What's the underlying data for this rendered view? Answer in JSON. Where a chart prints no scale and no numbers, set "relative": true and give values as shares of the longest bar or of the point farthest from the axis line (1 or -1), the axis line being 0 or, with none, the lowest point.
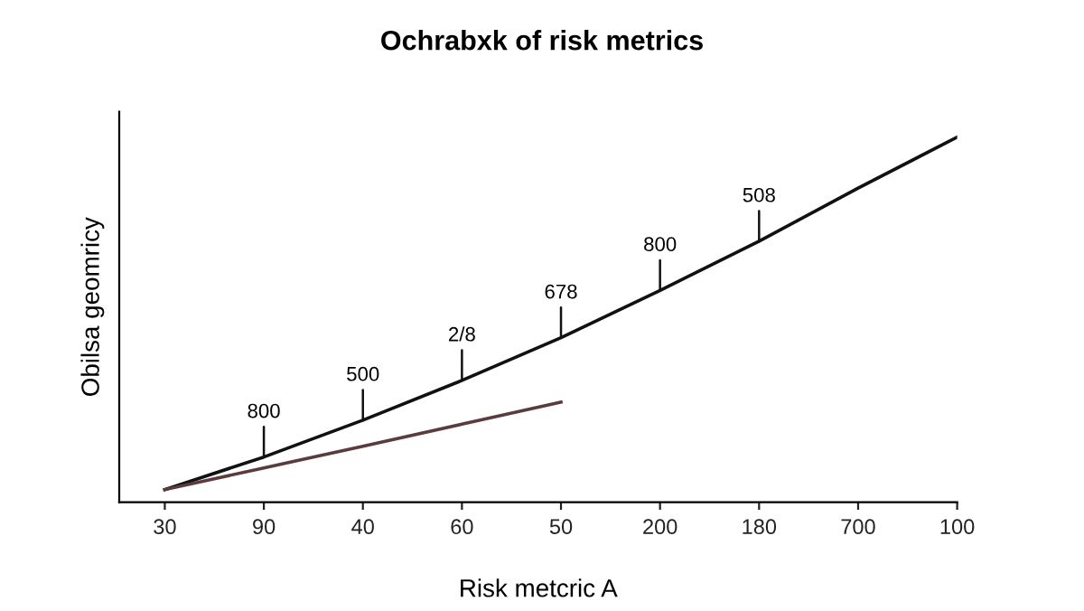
{
  "chart_data": {
    "type": "line",
    "title": "Ochrabxk of risk metrics",
    "xlabel": "Risk metcric A",
    "ylabel": "Obilsa geomricy",
    "relative": true,
    "categories": [
      "30",
      "90",
      "40",
      "60",
      "50",
      "200",
      "180",
      "700",
      "100"
    ],
    "series": [
      {
        "color": "#111111",
        "values": [
          0.025,
          0.115,
          0.217,
          0.327,
          0.445,
          0.576,
          0.712,
          0.859,
          1
        ]
      },
      {
        "color": "#5b3b3b",
        "values": [
          0.025,
          0.085,
          0.145,
          0.206,
          0.267,
          null,
          null,
          null,
          null
        ]
      }
    ],
    "annotations": [
      {
        "text": "800",
        "x": "90",
        "y": 0.115
      },
      {
        "text": "500",
        "x": "40",
        "y": 0.217
      },
      {
        "text": "2/8",
        "x": "60",
        "y": 0.327
      },
      {
        "text": "678",
        "x": "50",
        "y": 0.445
      },
      {
        "text": "800",
        "x": "200",
        "y": 0.576
      },
      {
        "text": "508",
        "x": "180",
        "y": 0.712
      }
    ],
    "grid": false,
    "legend": false,
    "marker": "none",
    "line_style": "solid"
  }
}
